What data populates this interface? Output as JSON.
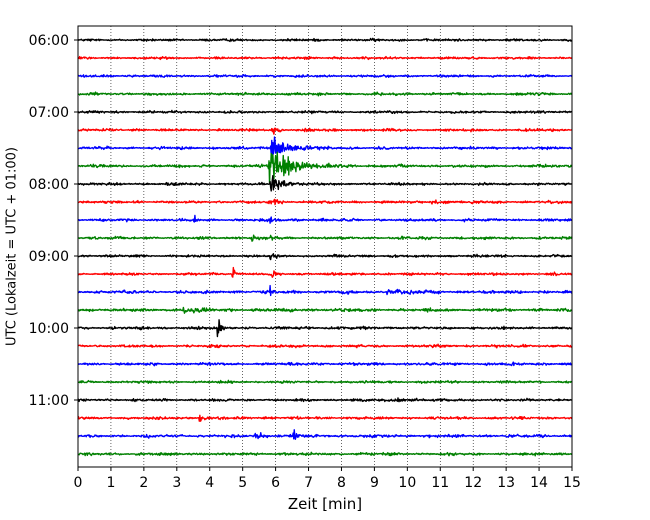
{
  "chart_data": {
    "type": "line",
    "title": "",
    "xlabel": "Zeit  [min]",
    "ylabel": "UTC (Lokalzeit = UTC + 01:00)",
    "xlim": [
      0,
      15
    ],
    "x_ticks": [
      "0",
      "1",
      "2",
      "3",
      "4",
      "5",
      "6",
      "7",
      "8",
      "9",
      "10",
      "11",
      "12",
      "13",
      "14",
      "15"
    ],
    "y_ticks": [
      "06:00",
      "07:00",
      "08:00",
      "09:00",
      "10:00",
      "11:00"
    ],
    "y_tick_rows": [
      0,
      4,
      8,
      12,
      16,
      20
    ],
    "grid": "vertical dotted",
    "row_interval_minutes": 15,
    "start_time": "06:00",
    "colors": [
      "#000000",
      "#ff0000",
      "#0000ff",
      "#008000"
    ],
    "traces": [
      {
        "start": "06:00",
        "noise": 0.55,
        "events": []
      },
      {
        "start": "06:15",
        "noise": 0.55,
        "events": []
      },
      {
        "start": "06:30",
        "noise": 0.55,
        "events": []
      },
      {
        "start": "06:45",
        "noise": 0.6,
        "events": []
      },
      {
        "start": "07:00",
        "noise": 0.55,
        "events": []
      },
      {
        "start": "07:15",
        "noise": 0.6,
        "events": [
          {
            "t": 5.9,
            "amp": 4.0,
            "dur": 0.1
          }
        ]
      },
      {
        "start": "07:30",
        "noise": 0.6,
        "events": [
          {
            "t": 5.85,
            "amp": 9.0,
            "dur": 0.4
          }
        ]
      },
      {
        "start": "07:45",
        "noise": 0.6,
        "events": [
          {
            "t": 5.8,
            "amp": 14.0,
            "dur": 0.55
          }
        ]
      },
      {
        "start": "08:00",
        "noise": 0.55,
        "events": [
          {
            "t": 5.85,
            "amp": 6.0,
            "dur": 0.3
          }
        ]
      },
      {
        "start": "08:15",
        "noise": 0.6,
        "events": [
          {
            "t": 5.85,
            "amp": 3.0,
            "dur": 0.15
          },
          {
            "t": 10.7,
            "amp": 1.2,
            "dur": 0.4
          }
        ]
      },
      {
        "start": "08:30",
        "noise": 0.6,
        "events": [
          {
            "t": 3.52,
            "amp": 5.0,
            "dur": 0.04
          },
          {
            "t": 5.85,
            "amp": 2.5,
            "dur": 0.1
          }
        ]
      },
      {
        "start": "08:45",
        "noise": 0.6,
        "events": [
          {
            "t": 5.3,
            "amp": 3.5,
            "dur": 0.04
          },
          {
            "t": 5.85,
            "amp": 2.0,
            "dur": 0.1
          }
        ]
      },
      {
        "start": "09:00",
        "noise": 0.55,
        "events": [
          {
            "t": 5.85,
            "amp": 2.5,
            "dur": 0.1
          }
        ]
      },
      {
        "start": "09:15",
        "noise": 0.55,
        "events": [
          {
            "t": 4.7,
            "amp": 7.0,
            "dur": 0.05
          },
          {
            "t": 5.85,
            "amp": 2.0,
            "dur": 0.1
          }
        ]
      },
      {
        "start": "09:30",
        "noise": 0.65,
        "events": [
          {
            "t": 5.85,
            "amp": 2.0,
            "dur": 0.1
          },
          {
            "t": 9.4,
            "amp": 1.5,
            "dur": 0.5
          }
        ]
      },
      {
        "start": "09:45",
        "noise": 0.7,
        "events": [
          {
            "t": 3.2,
            "amp": 1.5,
            "dur": 0.4
          }
        ]
      },
      {
        "start": "10:00",
        "noise": 0.6,
        "events": [
          {
            "t": 4.25,
            "amp": 8.0,
            "dur": 0.05
          }
        ]
      },
      {
        "start": "10:15",
        "noise": 0.6,
        "events": []
      },
      {
        "start": "10:30",
        "noise": 0.6,
        "events": []
      },
      {
        "start": "10:45",
        "noise": 0.55,
        "events": []
      },
      {
        "start": "11:00",
        "noise": 0.6,
        "events": [
          {
            "t": 9.6,
            "amp": 2.0,
            "dur": 0.2
          }
        ]
      },
      {
        "start": "11:15",
        "noise": 0.6,
        "events": [
          {
            "t": 3.7,
            "amp": 5.0,
            "dur": 0.05
          }
        ]
      },
      {
        "start": "11:30",
        "noise": 0.65,
        "events": [
          {
            "t": 5.4,
            "amp": 1.5,
            "dur": 0.3
          },
          {
            "t": 6.55,
            "amp": 7.0,
            "dur": 0.06
          }
        ]
      },
      {
        "start": "11:45",
        "noise": 0.6,
        "events": []
      }
    ]
  }
}
